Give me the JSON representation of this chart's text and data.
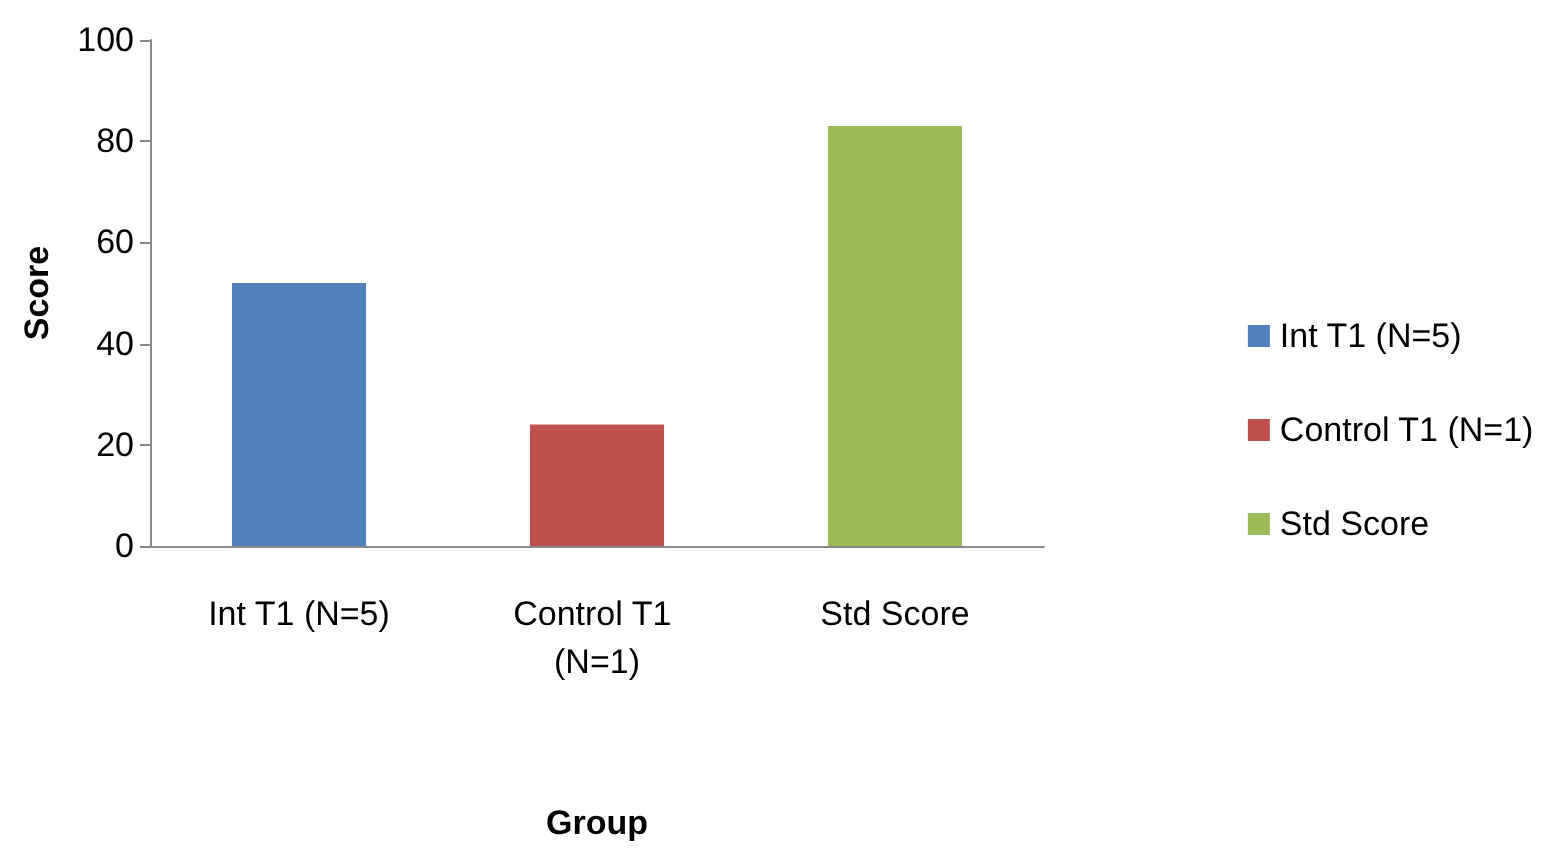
{
  "chart_data": {
    "type": "bar",
    "xlabel": "Group",
    "ylabel": "Score",
    "categories": [
      "Int T1 (N=5)",
      "Control T1 (N=1)",
      "Std Score"
    ],
    "series": [
      {
        "name": "Int T1 (N=5)",
        "color": "#4f81bd",
        "values": [
          52,
          null,
          null
        ]
      },
      {
        "name": "Control T1 (N=1)",
        "color": "#c0504d",
        "values": [
          null,
          24,
          null
        ]
      },
      {
        "name": "Std Score",
        "color": "#9bbb59",
        "values": [
          null,
          null,
          83
        ]
      }
    ],
    "stacked": true,
    "ylim": [
      0,
      100
    ],
    "yticks": [
      0,
      20,
      40,
      60,
      80,
      100
    ],
    "grid": false,
    "legend": "right"
  }
}
